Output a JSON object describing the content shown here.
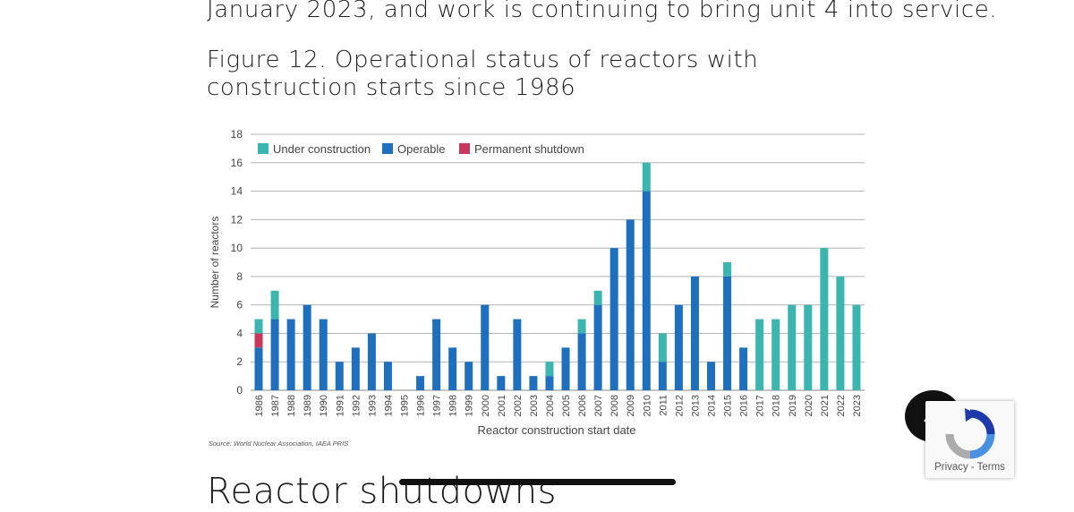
{
  "text": {
    "lead": "January 2023, and work is continuing to bring unit 4 into service.",
    "figure_title": "Figure 12. Operational status of reactors with construction starts since 1986",
    "source": "Source: World Nuclear Association, IAEA PRIS",
    "next_heading": "Reactor shutdowns"
  },
  "recaptcha": {
    "privacy": "Privacy",
    "separator": "-",
    "terms": "Terms"
  },
  "icons": {
    "back_to_top": "chevron-up-icon",
    "recaptcha": "recaptcha-logo-icon"
  },
  "chart_data": {
    "type": "bar",
    "stacked": true,
    "xlabel": "Reactor construction start date",
    "ylabel": "Number of reactors",
    "ylim": [
      0,
      18
    ],
    "yticks": [
      0,
      2,
      4,
      6,
      8,
      10,
      12,
      14,
      16,
      18
    ],
    "grid": true,
    "legend_position": "top-left",
    "categories": [
      "1986",
      "1987",
      "1988",
      "1989",
      "1990",
      "1991",
      "1992",
      "1993",
      "1994",
      "1995",
      "1996",
      "1997",
      "1998",
      "1999",
      "2000",
      "2001",
      "2002",
      "2003",
      "2004",
      "2005",
      "2006",
      "2007",
      "2008",
      "2009",
      "2010",
      "2011",
      "2012",
      "2013",
      "2014",
      "2015",
      "2016",
      "2017",
      "2018",
      "2019",
      "2020",
      "2021",
      "2022",
      "2023"
    ],
    "series": [
      {
        "name": "Operable",
        "color": "#1f6fbf",
        "values": [
          3,
          5,
          5,
          6,
          5,
          2,
          3,
          4,
          2,
          0,
          1,
          5,
          3,
          2,
          6,
          1,
          5,
          1,
          1,
          3,
          4,
          6,
          10,
          12,
          14,
          2,
          6,
          8,
          2,
          8,
          3,
          0,
          0,
          0,
          0,
          0,
          0,
          0
        ]
      },
      {
        "name": "Permanent shutdown",
        "color": "#c8385a",
        "values": [
          1,
          0,
          0,
          0,
          0,
          0,
          0,
          0,
          0,
          0,
          0,
          0,
          0,
          0,
          0,
          0,
          0,
          0,
          0,
          0,
          0,
          0,
          0,
          0,
          0,
          0,
          0,
          0,
          0,
          0,
          0,
          0,
          0,
          0,
          0,
          0,
          0,
          0
        ]
      },
      {
        "name": "Under construction",
        "color": "#3ab5b0",
        "values": [
          1,
          2,
          0,
          0,
          0,
          0,
          0,
          0,
          0,
          0,
          0,
          0,
          0,
          0,
          0,
          0,
          0,
          0,
          1,
          0,
          1,
          1,
          0,
          0,
          2,
          2,
          0,
          0,
          0,
          1,
          0,
          5,
          5,
          6,
          6,
          10,
          8,
          6
        ]
      }
    ],
    "legend_order": [
      "Under construction",
      "Operable",
      "Permanent shutdown"
    ]
  }
}
